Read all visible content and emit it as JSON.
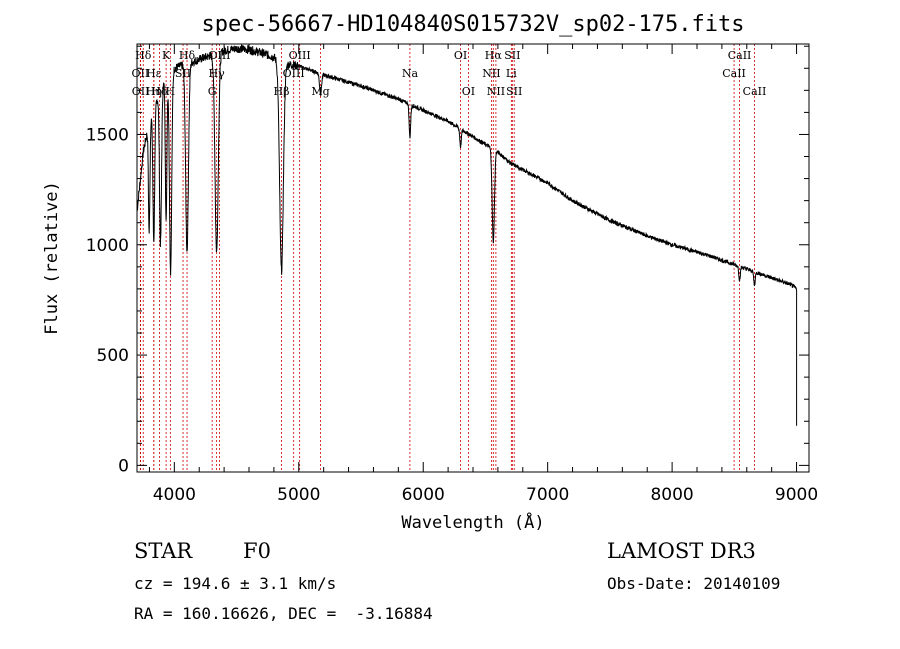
{
  "chart_data": {
    "type": "line",
    "title": "spec-56667-HD104840S015732V_sp02-175.fits",
    "xlabel": "Wavelength (Å)",
    "ylabel": "Flux (relative)",
    "xlim": [
      3700,
      9100
    ],
    "ylim": [
      -30,
      1910
    ],
    "xticks": [
      4000,
      5000,
      6000,
      7000,
      8000,
      9000
    ],
    "yticks": [
      0,
      500,
      1000,
      1500
    ],
    "continuum": [
      {
        "x": 3700,
        "y": 1150
      },
      {
        "x": 3750,
        "y": 1420
      },
      {
        "x": 3800,
        "y": 1560
      },
      {
        "x": 3900,
        "y": 1720
      },
      {
        "x": 4000,
        "y": 1800
      },
      {
        "x": 4100,
        "y": 1820
      },
      {
        "x": 4200,
        "y": 1840
      },
      {
        "x": 4300,
        "y": 1860
      },
      {
        "x": 4400,
        "y": 1880
      },
      {
        "x": 4500,
        "y": 1890
      },
      {
        "x": 4600,
        "y": 1885
      },
      {
        "x": 4700,
        "y": 1870
      },
      {
        "x": 4800,
        "y": 1850
      },
      {
        "x": 4900,
        "y": 1820
      },
      {
        "x": 5000,
        "y": 1810
      },
      {
        "x": 5200,
        "y": 1770
      },
      {
        "x": 5500,
        "y": 1720
      },
      {
        "x": 5800,
        "y": 1660
      },
      {
        "x": 6000,
        "y": 1610
      },
      {
        "x": 6200,
        "y": 1560
      },
      {
        "x": 6400,
        "y": 1490
      },
      {
        "x": 6600,
        "y": 1420
      },
      {
        "x": 6700,
        "y": 1370
      },
      {
        "x": 7000,
        "y": 1280
      },
      {
        "x": 7200,
        "y": 1200
      },
      {
        "x": 7500,
        "y": 1110
      },
      {
        "x": 7800,
        "y": 1040
      },
      {
        "x": 8000,
        "y": 1000
      },
      {
        "x": 8300,
        "y": 950
      },
      {
        "x": 8600,
        "y": 890
      },
      {
        "x": 8800,
        "y": 850
      },
      {
        "x": 8950,
        "y": 820
      },
      {
        "x": 9000,
        "y": 800
      }
    ],
    "absorption": [
      {
        "x": 3798,
        "depth": 500,
        "width": 6
      },
      {
        "x": 3835,
        "depth": 600,
        "width": 7
      },
      {
        "x": 3889,
        "depth": 700,
        "width": 8
      },
      {
        "x": 3934,
        "depth": 650,
        "width": 6
      },
      {
        "x": 3970,
        "depth": 900,
        "width": 9
      },
      {
        "x": 4102,
        "depth": 850,
        "width": 11
      },
      {
        "x": 4340,
        "depth": 900,
        "width": 13
      },
      {
        "x": 4861,
        "depth": 950,
        "width": 15
      },
      {
        "x": 5175,
        "depth": 90,
        "width": 8
      },
      {
        "x": 5893,
        "depth": 150,
        "width": 6
      },
      {
        "x": 6300,
        "depth": 80,
        "width": 6
      },
      {
        "x": 6563,
        "depth": 420,
        "width": 9
      },
      {
        "x": 8542,
        "depth": 60,
        "width": 6
      },
      {
        "x": 8662,
        "depth": 60,
        "width": 6
      }
    ],
    "spectral_lines": [
      {
        "name": "Hδ",
        "x": 3750,
        "row": 0
      },
      {
        "name": "OII",
        "x": 3727,
        "row": 1
      },
      {
        "name": "OII",
        "x": 3729,
        "row": 2
      },
      {
        "name": "Hε",
        "x": 3835,
        "row": 1
      },
      {
        "name": "Hη",
        "x": 3835,
        "row": 2
      },
      {
        "name": "K",
        "x": 3934,
        "row": 0
      },
      {
        "name": "Hδ",
        "x": 3880,
        "row": 2
      },
      {
        "name": "SII",
        "x": 4070,
        "row": 1
      },
      {
        "name": "H",
        "x": 3968,
        "row": 2
      },
      {
        "name": "Hδ",
        "x": 4102,
        "row": 0
      },
      {
        "name": "OIII",
        "x": 4363,
        "row": 0
      },
      {
        "name": "Hγ",
        "x": 4340,
        "row": 1
      },
      {
        "name": "G",
        "x": 4304,
        "row": 2
      },
      {
        "name": "OIII",
        "x": 5007,
        "row": 0
      },
      {
        "name": "OIII",
        "x": 4959,
        "row": 1
      },
      {
        "name": "Hβ",
        "x": 4861,
        "row": 2
      },
      {
        "name": "Mg",
        "x": 5175,
        "row": 2
      },
      {
        "name": "Na",
        "x": 5893,
        "row": 1
      },
      {
        "name": "OI",
        "x": 6300,
        "row": 0
      },
      {
        "name": "OI",
        "x": 6363,
        "row": 2
      },
      {
        "name": "Hα",
        "x": 6563,
        "row": 0
      },
      {
        "name": "NII",
        "x": 6548,
        "row": 1
      },
      {
        "name": "NII",
        "x": 6584,
        "row": 2
      },
      {
        "name": "SII",
        "x": 6716,
        "row": 0
      },
      {
        "name": "Li",
        "x": 6708,
        "row": 1
      },
      {
        "name": "SII",
        "x": 6731,
        "row": 2
      },
      {
        "name": "CaII",
        "x": 8542,
        "row": 0
      },
      {
        "name": "CaII",
        "x": 8498,
        "row": 1
      },
      {
        "name": "CaII",
        "x": 8662,
        "row": 2
      }
    ]
  },
  "info": {
    "object_type": "STAR",
    "subclass": "F0",
    "survey": "LAMOST DR3",
    "cz": "cz = 194.6 ± 3.1 km/s",
    "obs_date": "Obs-Date: 20140109",
    "coords": "RA = 160.16626, DEC =  -3.16884"
  },
  "colors": {
    "spectrum": "#000000",
    "line_markers": "#cc0000",
    "axes": "#000000"
  }
}
